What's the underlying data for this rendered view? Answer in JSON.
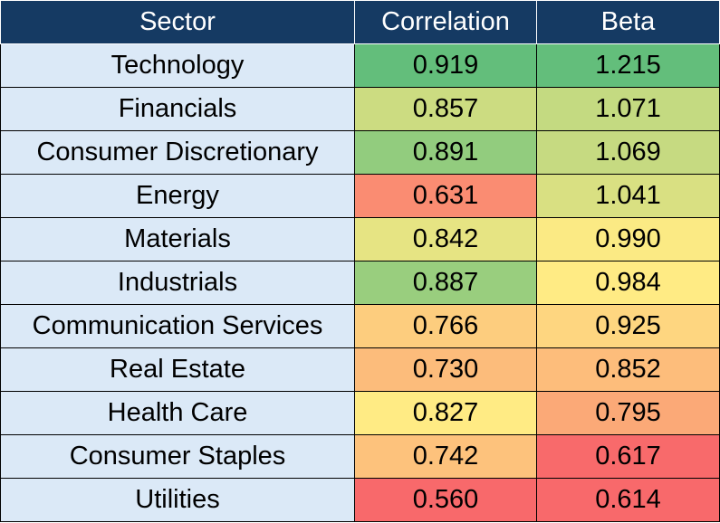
{
  "chart_data": {
    "type": "table",
    "columns": [
      "Sector",
      "Correlation",
      "Beta"
    ],
    "rows": [
      {
        "sector": "Technology",
        "correlation": "0.919",
        "beta": "1.215"
      },
      {
        "sector": "Financials",
        "correlation": "0.857",
        "beta": "1.071"
      },
      {
        "sector": "Consumer Discretionary",
        "correlation": "0.891",
        "beta": "1.069"
      },
      {
        "sector": "Energy",
        "correlation": "0.631",
        "beta": "1.041"
      },
      {
        "sector": "Materials",
        "correlation": "0.842",
        "beta": "0.990"
      },
      {
        "sector": "Industrials",
        "correlation": "0.887",
        "beta": "0.984"
      },
      {
        "sector": "Communication Services",
        "correlation": "0.766",
        "beta": "0.925"
      },
      {
        "sector": "Real Estate",
        "correlation": "0.730",
        "beta": "0.852"
      },
      {
        "sector": "Health Care",
        "correlation": "0.827",
        "beta": "0.795"
      },
      {
        "sector": "Consumer Staples",
        "correlation": "0.742",
        "beta": "0.617"
      },
      {
        "sector": "Utilities",
        "correlation": "0.560",
        "beta": "0.614"
      }
    ],
    "colors": {
      "header_bg": "#153a63",
      "header_text": "#ffffff",
      "sector_bg": "#dbe9f7",
      "low": "#f8696b",
      "mid": "#ffeb84",
      "high": "#63be7b"
    }
  }
}
